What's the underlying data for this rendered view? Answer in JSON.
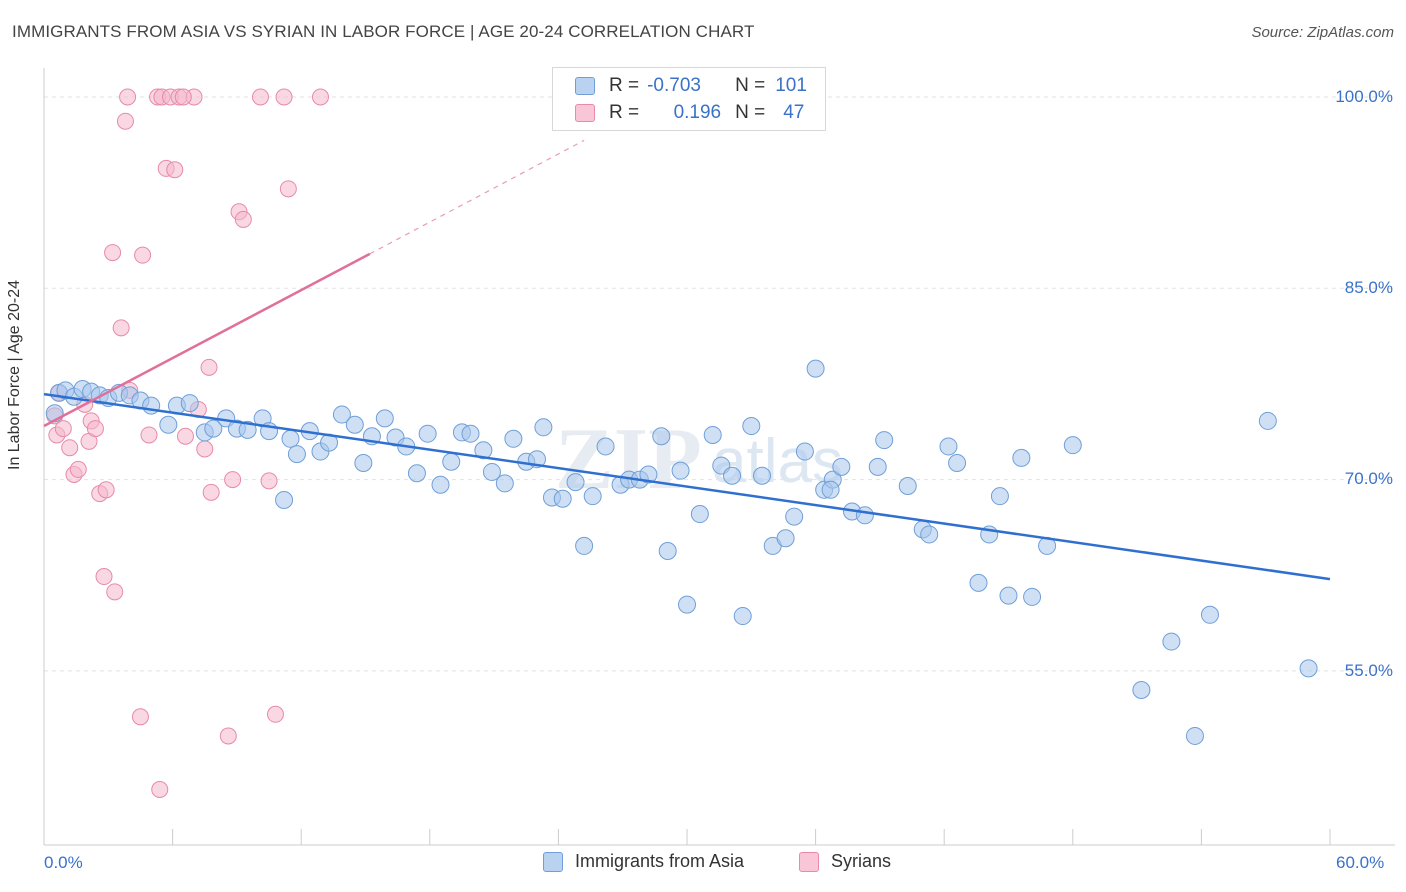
{
  "header": {
    "title": "IMMIGRANTS FROM ASIA VS SYRIAN IN LABOR FORCE | AGE 20-24 CORRELATION CHART",
    "source": "Source: ZipAtlas.com"
  },
  "legend": {
    "rows": [
      {
        "r_label": "R =",
        "r_value": "-0.703",
        "n_label": "N =",
        "n_value": "101"
      },
      {
        "r_label": "R =",
        "r_value": "0.196",
        "n_label": "N =",
        "n_value": "47"
      }
    ]
  },
  "axes": {
    "y_label": "In Labor Force | Age 20-24",
    "y_ticks": [
      "100.0%",
      "85.0%",
      "70.0%",
      "55.0%"
    ],
    "x_min_label": "0.0%",
    "x_max_label": "60.0%"
  },
  "bottom_legend": {
    "asia": "Immigrants from Asia",
    "syrians": "Syrians"
  },
  "colors": {
    "blue_fill": "#a8c6ec",
    "blue_stroke": "#6f9fd8",
    "blue_line": "#2f6fd0",
    "pink_fill": "#f4b8cc",
    "pink_stroke": "#e88aa8",
    "pink_line": "#e0709a"
  },
  "chart_data": {
    "type": "scatter",
    "title": "IMMIGRANTS FROM ASIA VS SYRIAN IN LABOR FORCE | AGE 20-24 CORRELATION CHART",
    "xlabel": "",
    "ylabel": "In Labor Force | Age 20-24",
    "xlim": [
      0,
      60
    ],
    "ylim": [
      40,
      101.5
    ],
    "grid": true,
    "series": [
      {
        "name": "Immigrants from Asia",
        "R": -0.703,
        "N": 101,
        "trend": {
          "x": [
            0,
            60
          ],
          "y": [
            76.7,
            62.2
          ]
        },
        "points": [
          [
            0.5,
            75.2
          ],
          [
            0.7,
            76.8
          ],
          [
            1.0,
            77.0
          ],
          [
            1.4,
            76.5
          ],
          [
            1.8,
            77.1
          ],
          [
            2.2,
            76.9
          ],
          [
            2.6,
            76.6
          ],
          [
            3.0,
            76.4
          ],
          [
            3.5,
            76.8
          ],
          [
            4.0,
            76.6
          ],
          [
            4.5,
            76.2
          ],
          [
            5.0,
            75.8
          ],
          [
            5.8,
            74.3
          ],
          [
            6.2,
            75.8
          ],
          [
            6.8,
            76.0
          ],
          [
            7.5,
            73.7
          ],
          [
            7.9,
            74.0
          ],
          [
            8.5,
            74.8
          ],
          [
            9.0,
            74.0
          ],
          [
            9.5,
            73.9
          ],
          [
            10.2,
            74.8
          ],
          [
            10.5,
            73.8
          ],
          [
            11.2,
            68.4
          ],
          [
            11.5,
            73.2
          ],
          [
            11.8,
            72.0
          ],
          [
            12.4,
            73.8
          ],
          [
            12.9,
            72.2
          ],
          [
            13.3,
            72.9
          ],
          [
            13.9,
            75.1
          ],
          [
            14.5,
            74.3
          ],
          [
            14.9,
            71.3
          ],
          [
            15.3,
            73.4
          ],
          [
            15.9,
            74.8
          ],
          [
            16.4,
            73.3
          ],
          [
            16.9,
            72.6
          ],
          [
            17.4,
            70.5
          ],
          [
            17.9,
            73.6
          ],
          [
            18.5,
            69.6
          ],
          [
            19.0,
            71.4
          ],
          [
            19.5,
            73.7
          ],
          [
            19.9,
            73.6
          ],
          [
            20.5,
            72.3
          ],
          [
            20.9,
            70.6
          ],
          [
            21.5,
            69.7
          ],
          [
            21.9,
            73.2
          ],
          [
            22.5,
            71.4
          ],
          [
            23.0,
            71.6
          ],
          [
            23.3,
            74.1
          ],
          [
            23.7,
            68.6
          ],
          [
            24.2,
            68.5
          ],
          [
            24.8,
            69.8
          ],
          [
            25.2,
            64.8
          ],
          [
            25.6,
            68.7
          ],
          [
            26.2,
            72.6
          ],
          [
            26.9,
            69.6
          ],
          [
            27.3,
            70.0
          ],
          [
            27.8,
            70.0
          ],
          [
            28.2,
            70.4
          ],
          [
            28.8,
            73.4
          ],
          [
            29.1,
            64.4
          ],
          [
            29.7,
            70.7
          ],
          [
            30.0,
            60.2
          ],
          [
            30.6,
            67.3
          ],
          [
            31.2,
            73.5
          ],
          [
            31.6,
            71.1
          ],
          [
            32.1,
            70.3
          ],
          [
            32.6,
            59.3
          ],
          [
            33.0,
            74.2
          ],
          [
            33.5,
            70.3
          ],
          [
            34.0,
            64.8
          ],
          [
            34.6,
            65.4
          ],
          [
            35.0,
            67.1
          ],
          [
            35.5,
            72.2
          ],
          [
            36.0,
            78.7
          ],
          [
            36.4,
            69.2
          ],
          [
            36.8,
            70.0
          ],
          [
            37.2,
            71.0
          ],
          [
            37.7,
            67.5
          ],
          [
            38.3,
            67.2
          ],
          [
            38.9,
            71.0
          ],
          [
            39.2,
            73.1
          ],
          [
            40.3,
            69.5
          ],
          [
            41.0,
            66.1
          ],
          [
            41.3,
            65.7
          ],
          [
            42.2,
            72.6
          ],
          [
            42.6,
            71.3
          ],
          [
            43.6,
            61.9
          ],
          [
            44.1,
            65.7
          ],
          [
            44.6,
            68.7
          ],
          [
            45.0,
            60.9
          ],
          [
            45.6,
            71.7
          ],
          [
            46.1,
            60.8
          ],
          [
            46.8,
            64.8
          ],
          [
            48.0,
            72.7
          ],
          [
            51.2,
            53.5
          ],
          [
            52.6,
            57.3
          ],
          [
            53.7,
            49.9
          ],
          [
            54.4,
            59.4
          ],
          [
            57.1,
            74.6
          ],
          [
            59.0,
            55.2
          ],
          [
            36.7,
            69.2
          ]
        ]
      },
      {
        "name": "Syrians",
        "R": 0.196,
        "N": 47,
        "trend": {
          "x": [
            0,
            15.2
          ],
          "y": [
            74.2,
            87.7
          ],
          "dashed_to": {
            "x": 25.2,
            "y": 96.6
          }
        },
        "points": [
          [
            0.5,
            75.0
          ],
          [
            0.6,
            73.5
          ],
          [
            0.7,
            76.8
          ],
          [
            0.9,
            74.0
          ],
          [
            1.2,
            72.5
          ],
          [
            1.4,
            70.4
          ],
          [
            1.6,
            70.8
          ],
          [
            1.9,
            75.9
          ],
          [
            2.1,
            73.0
          ],
          [
            2.2,
            74.6
          ],
          [
            2.4,
            74.0
          ],
          [
            2.6,
            68.9
          ],
          [
            2.9,
            69.2
          ],
          [
            2.8,
            62.4
          ],
          [
            3.3,
            61.2
          ],
          [
            3.2,
            87.8
          ],
          [
            3.6,
            81.9
          ],
          [
            3.8,
            98.1
          ],
          [
            3.9,
            100.0
          ],
          [
            4.0,
            77.0
          ],
          [
            4.5,
            51.4
          ],
          [
            4.6,
            87.6
          ],
          [
            4.9,
            73.5
          ],
          [
            5.3,
            100.0
          ],
          [
            5.5,
            100.0
          ],
          [
            5.4,
            45.7
          ],
          [
            5.7,
            94.4
          ],
          [
            5.9,
            100.0
          ],
          [
            6.1,
            94.3
          ],
          [
            6.3,
            100.0
          ],
          [
            6.6,
            73.4
          ],
          [
            7.0,
            100.0
          ],
          [
            7.2,
            75.5
          ],
          [
            7.5,
            72.4
          ],
          [
            7.7,
            78.8
          ],
          [
            7.8,
            69.0
          ],
          [
            8.6,
            49.9
          ],
          [
            8.8,
            70.0
          ],
          [
            9.1,
            91.0
          ],
          [
            9.3,
            90.4
          ],
          [
            10.1,
            100.0
          ],
          [
            10.5,
            69.9
          ],
          [
            10.8,
            51.6
          ],
          [
            11.2,
            100.0
          ],
          [
            11.4,
            92.8
          ],
          [
            12.9,
            100.0
          ],
          [
            6.5,
            100.0
          ]
        ]
      }
    ]
  }
}
